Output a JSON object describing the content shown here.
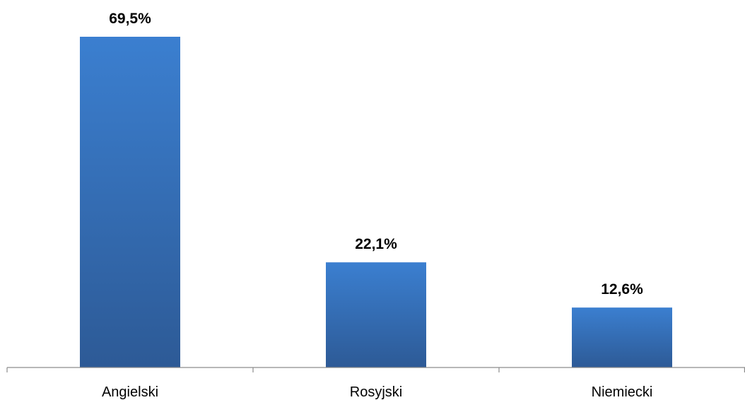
{
  "chart_data": {
    "type": "bar",
    "categories": [
      "Angielski",
      "Rosyjski",
      "Niemiecki"
    ],
    "values": [
      69.5,
      22.1,
      12.6
    ],
    "value_labels": [
      "69,5%",
      "22,1%",
      "12,6%"
    ],
    "title": "",
    "xlabel": "",
    "ylabel": "",
    "ylim": [
      0,
      69.5
    ],
    "grid": false,
    "legend": "none",
    "colors": {
      "bar_top": "#3b7fd0",
      "bar_bottom": "#2d5a96",
      "axis": "#8c8c8c"
    }
  }
}
